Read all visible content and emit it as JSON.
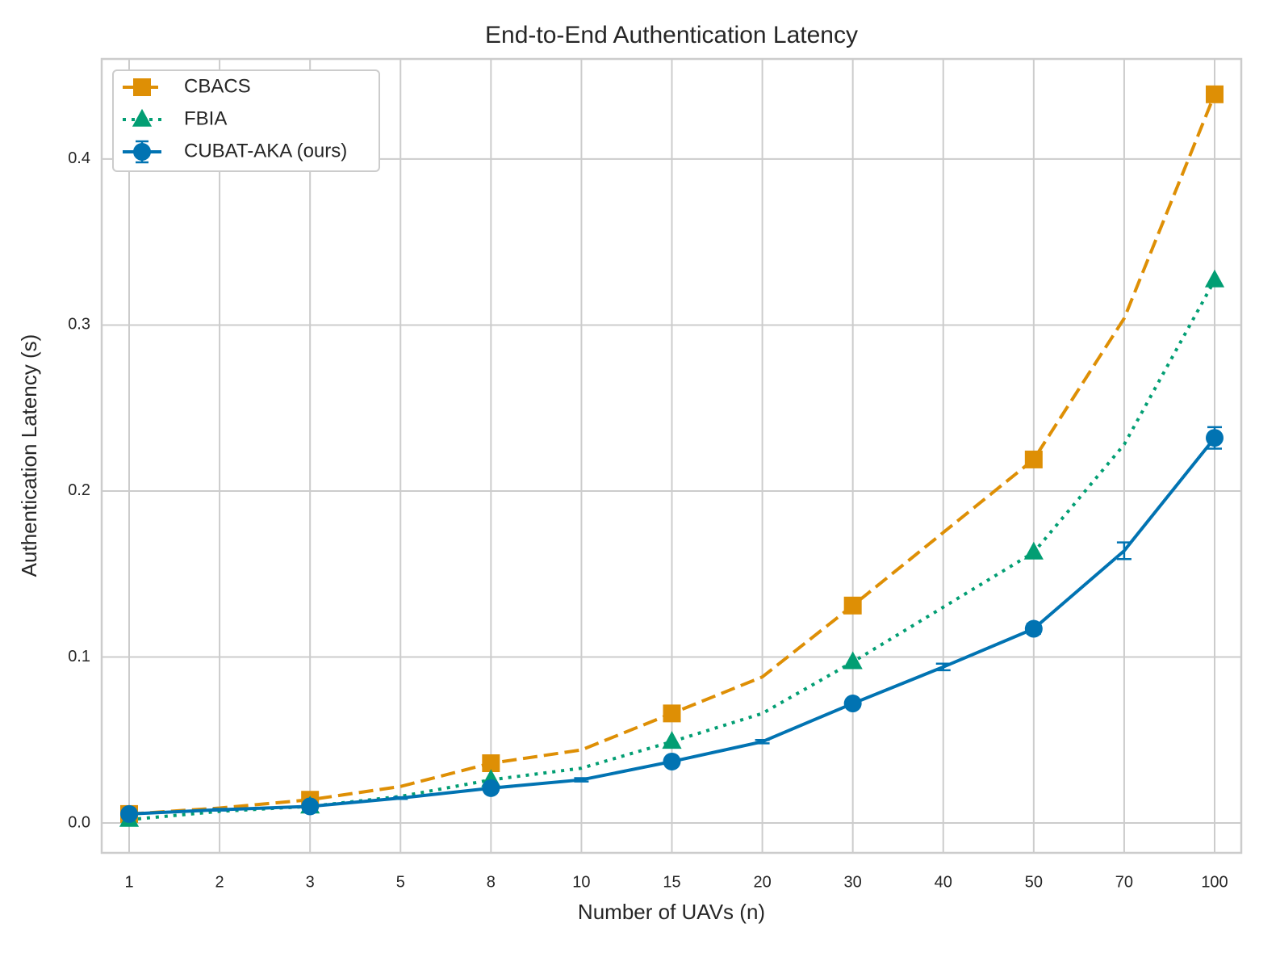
{
  "chart_data": {
    "type": "line",
    "title": "End-to-End Authentication Latency",
    "xlabel": "Number of UAVs (n)",
    "ylabel": "Authentication Latency (s)",
    "categories": [
      "1",
      "2",
      "3",
      "5",
      "8",
      "10",
      "15",
      "20",
      "30",
      "40",
      "50",
      "70",
      "100"
    ],
    "ylim": [
      -0.018,
      0.4603
    ],
    "yticks": [
      {
        "value": 0,
        "label": "0.0"
      },
      0.1,
      0.2,
      0.3,
      0.4
    ],
    "grid": true,
    "legend": "upper left",
    "series": [
      {
        "name": "CBACS",
        "color": "#de8f05",
        "linestyle": "dashed",
        "marker": "square",
        "markevery": 2,
        "values": [
          0.0054,
          0.009,
          0.014,
          0.022,
          0.036,
          0.044,
          0.066,
          0.088,
          0.131,
          0.175,
          0.219,
          0.304,
          0.439
        ]
      },
      {
        "name": "FBIA",
        "color": "#029e73",
        "linestyle": "dotted",
        "marker": "triangle",
        "markevery": 2,
        "values": [
          0.002,
          0.007,
          0.01,
          0.016,
          0.026,
          0.033,
          0.049,
          0.066,
          0.097,
          0.13,
          0.163,
          0.228,
          0.327
        ]
      },
      {
        "name": "CUBAT-AKA (ours)",
        "color": "#0173b2",
        "linestyle": "solid",
        "marker": "circle",
        "markevery": 2,
        "values": [
          0.0054,
          0.008,
          0.01,
          0.015,
          0.021,
          0.026,
          0.037,
          0.049,
          0.072,
          0.094,
          0.117,
          0.164,
          0.232
        ],
        "errors": [
          0.0005,
          0.0005,
          0.0005,
          0.0005,
          0.001,
          0.001,
          0.001,
          0.001,
          0.0015,
          0.002,
          0.003,
          0.005,
          0.0065
        ]
      }
    ]
  }
}
